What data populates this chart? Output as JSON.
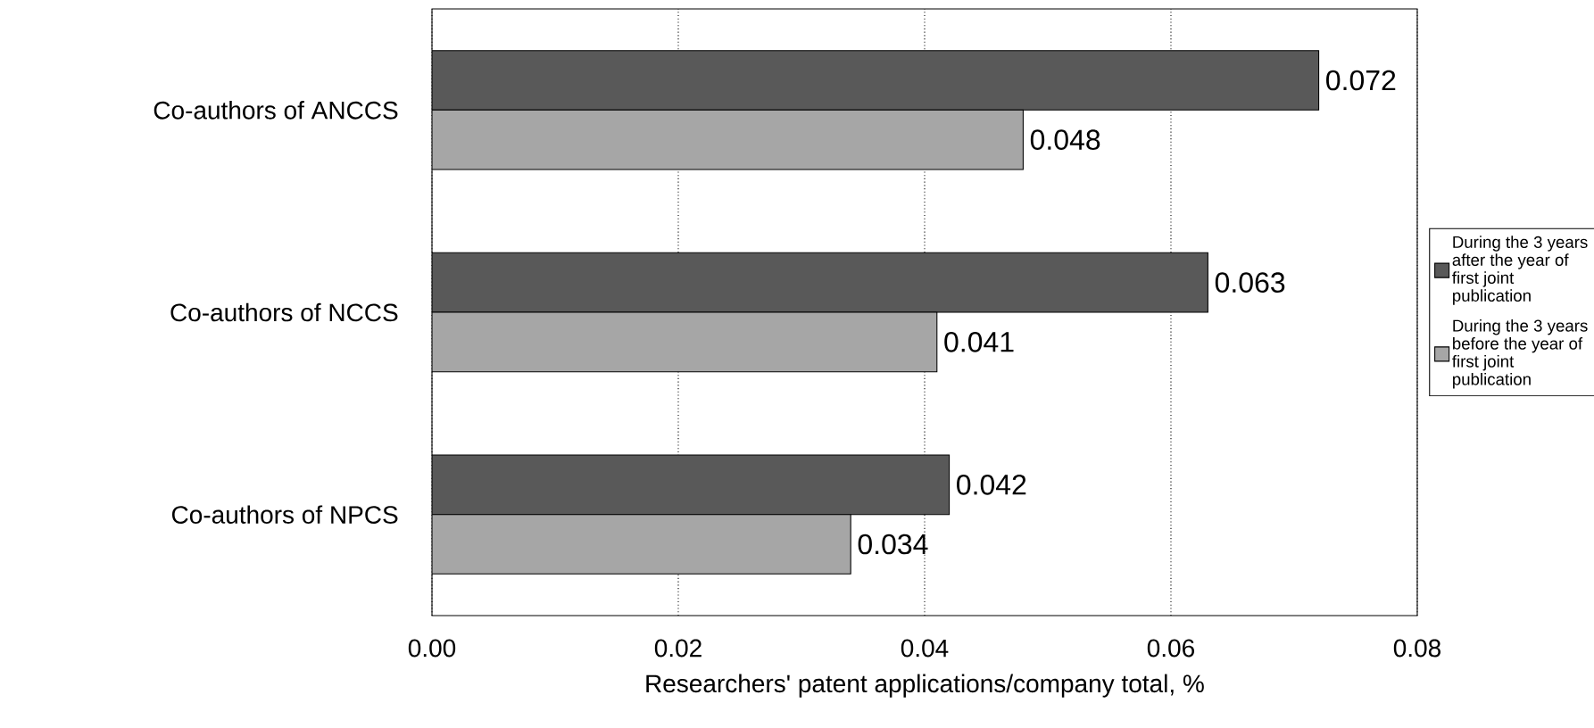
{
  "chart_data": {
    "type": "bar",
    "orientation": "horizontal",
    "xlabel": "Researchers' patent applications/company total, %",
    "categories": [
      "Co-authors of ANCCS",
      "Co-authors of NCCS",
      "Co-authors of NPCS"
    ],
    "series": [
      {
        "name": "During the 3 years after the year of first joint publication",
        "color": "#595959",
        "values": [
          0.072,
          0.063,
          0.042
        ]
      },
      {
        "name": "During the 3 years before the year of first joint publication",
        "color": "#a6a6a6",
        "values": [
          0.048,
          0.041,
          0.034
        ]
      }
    ],
    "xlim": [
      0,
      0.08
    ],
    "xticks": [
      {
        "value": 0,
        "label": "0.00"
      },
      {
        "value": 0.02,
        "label": "0.02"
      },
      {
        "value": 0.04,
        "label": "0.04"
      },
      {
        "value": 0.06,
        "label": "0.06"
      },
      {
        "value": 0.08,
        "label": "0.08"
      }
    ],
    "grid": "x",
    "legend": "right",
    "data_labels": true
  }
}
